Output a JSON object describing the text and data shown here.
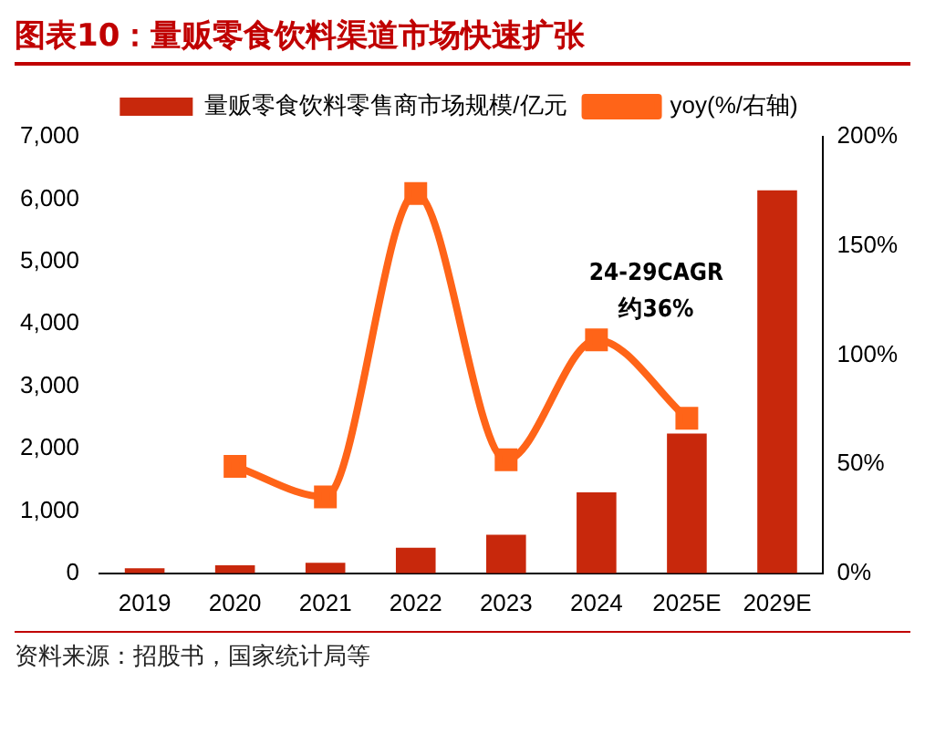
{
  "chart_data": {
    "type": "bar",
    "title": "图表10：量贩零食饮料渠道市场快速扩张",
    "categories": [
      "2019",
      "2020",
      "2021",
      "2022",
      "2023",
      "2024",
      "2025E",
      "2029E"
    ],
    "series": [
      {
        "name": "量贩零食饮料零售商市场规模/亿元",
        "color": "#c8280c",
        "values": [
          80,
          130,
          170,
          410,
          620,
          1300,
          2240,
          6140
        ]
      },
      {
        "name": "yoy(%/右轴)",
        "type": "line",
        "axis": "y2",
        "color": "#ff6418",
        "marker": "square",
        "values": [
          null,
          49,
          35,
          174,
          52,
          107,
          71,
          null
        ]
      }
    ],
    "ylim": [
      0,
      7000
    ],
    "yticks": [
      0,
      {
        "value": 1000,
        "label": "1,000"
      },
      {
        "value": 2000,
        "label": "2,000"
      },
      {
        "value": 3000,
        "label": "3,000"
      },
      {
        "value": 4000,
        "label": "4,000"
      },
      {
        "value": 5000,
        "label": "5,000"
      },
      {
        "value": 6000,
        "label": "6,000"
      },
      {
        "value": 7000,
        "label": "7,000"
      }
    ],
    "y2lim": [
      0,
      200
    ],
    "y2ticks": [
      {
        "value": 0,
        "label": "0%"
      },
      {
        "value": 50,
        "label": "50%"
      },
      {
        "value": 100,
        "label": "100%"
      },
      {
        "value": 150,
        "label": "150%"
      },
      {
        "value": 200,
        "label": "200%"
      }
    ],
    "legend": "top",
    "annotations": [
      "24-29CAGR\n约36%",
      "资料来源：招股书，国家统计局等"
    ]
  }
}
